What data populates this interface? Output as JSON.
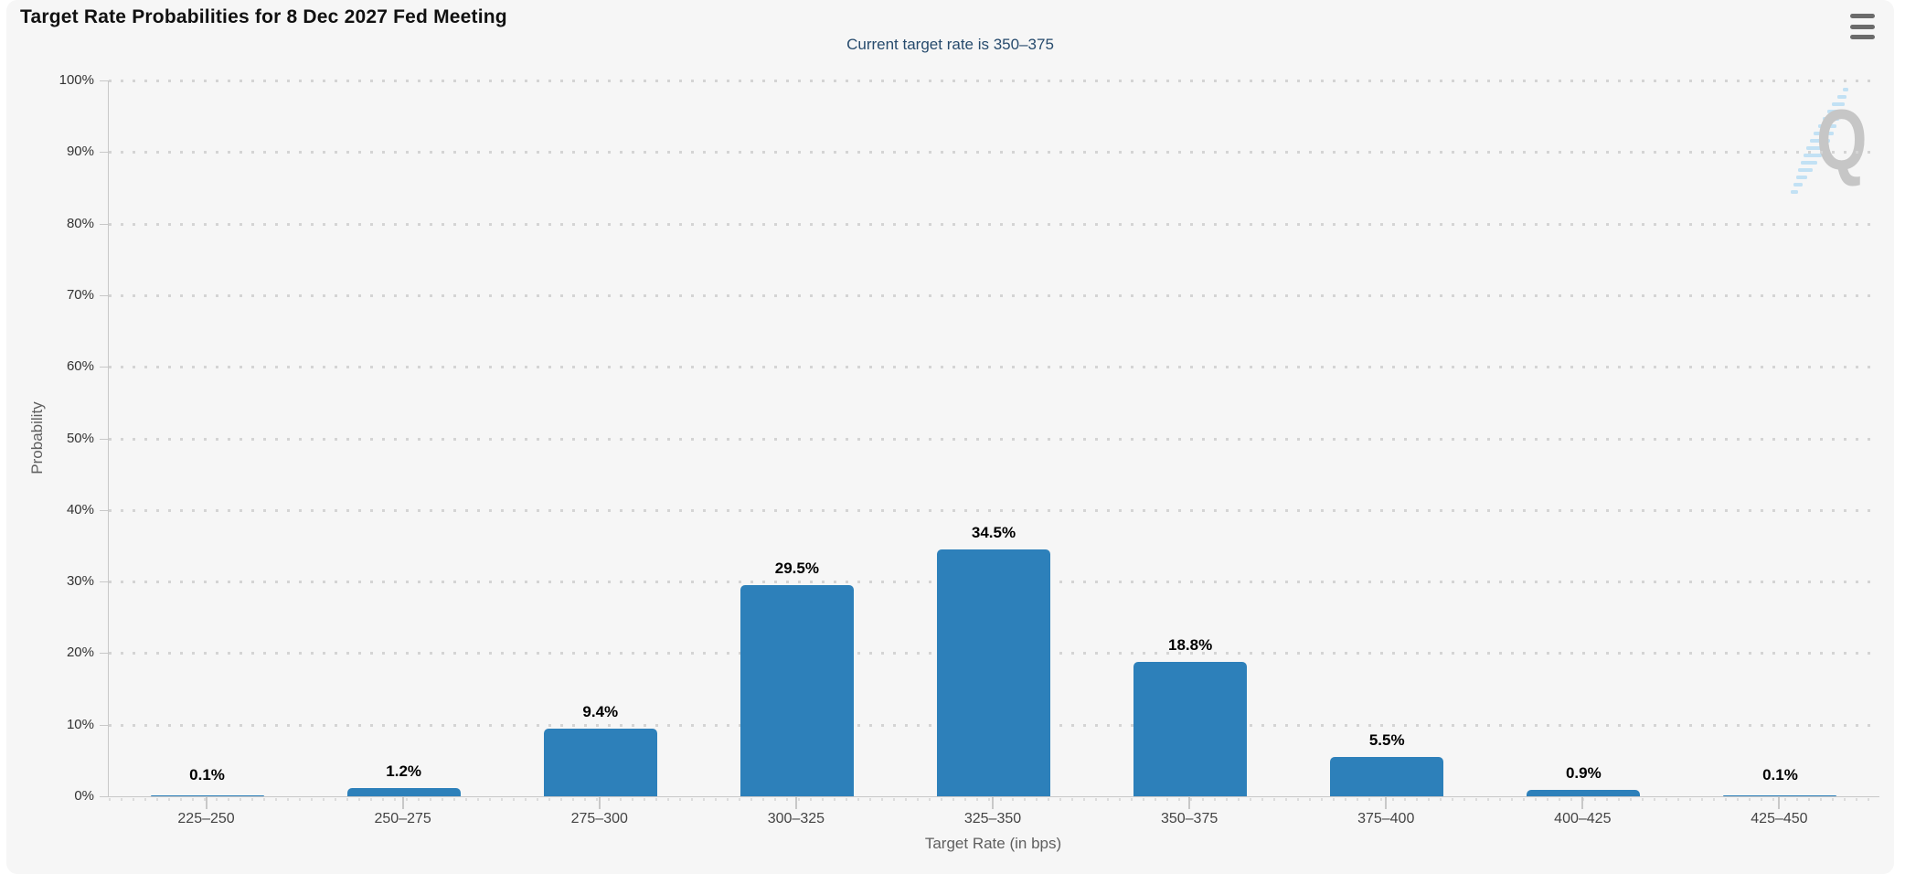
{
  "header": {
    "menu_icon": "context-menu"
  },
  "chart_data": {
    "type": "bar",
    "title": "Target Rate Probabilities for 8 Dec 2027 Fed Meeting",
    "subtitle": "Current target rate is 350–375",
    "xlabel": "Target Rate (in bps)",
    "ylabel": "Probability",
    "categories": [
      "225–250",
      "250–275",
      "275–300",
      "300–325",
      "325–350",
      "350–375",
      "375–400",
      "400–425",
      "425–450"
    ],
    "values": [
      0.1,
      1.2,
      9.4,
      29.5,
      34.5,
      18.8,
      5.5,
      0.9,
      0.1
    ],
    "value_labels": [
      "0.1%",
      "1.2%",
      "9.4%",
      "29.5%",
      "34.5%",
      "18.8%",
      "5.5%",
      "0.9%",
      "0.1%"
    ],
    "ylim": [
      0,
      100
    ],
    "ytick_step": 10,
    "ytick_labels": [
      "0%",
      "10%",
      "20%",
      "30%",
      "40%",
      "50%",
      "60%",
      "70%",
      "80%",
      "90%",
      "100%"
    ],
    "grid": "dotted-horizontal",
    "legend": "none",
    "watermark_letter": "Q"
  },
  "colors": {
    "page_bg": "#ffffff",
    "card_bg": "#f6f6f6",
    "bar": "#2d80ba",
    "title": "#111111",
    "subtitle": "#274b6d",
    "grid": "#d4d4d4",
    "axis_line": "#c8c8c8",
    "tick_label": "#333333",
    "axis_title": "#5f5f5f",
    "data_label": "#000000",
    "watermark_q": "#c6c6c6",
    "watermark_stripe": "#b5dcf4",
    "menu_icon": "#6b6b6b"
  }
}
